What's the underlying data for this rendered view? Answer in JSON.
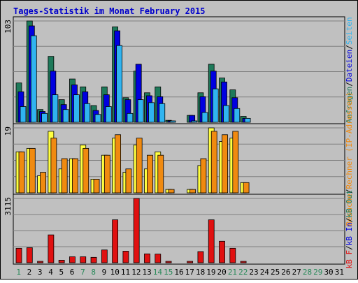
{
  "chart_data": {
    "type": "bar",
    "title": "Tages-Statistik im Monat February 2015",
    "x_tick_labels": [
      "1",
      "2",
      "3",
      "4",
      "5",
      "6",
      "7",
      "8",
      "9",
      "10",
      "11",
      "12",
      "13",
      "14",
      "15",
      "16",
      "17",
      "18",
      "19",
      "20",
      "21",
      "22",
      "23",
      "24",
      "25",
      "26",
      "27",
      "28",
      "29",
      "30",
      "31"
    ],
    "weekend_days": [
      1,
      7,
      8,
      14,
      15,
      21,
      22,
      28,
      29
    ],
    "colors": {
      "title": "#0000cc",
      "background": "#c0c0c0",
      "border": "#000000",
      "gridline": "#808080",
      "weekday_label": "#000000",
      "weekend_label": "#2a8a5a",
      "anfragen": "#1e7a5a",
      "dateien": "#0000e0",
      "seiten": "#30b4f0",
      "rechner": "#ffff40",
      "besuche": "#f08a10",
      "kb_f": "#e01010",
      "kb_in": "#0000e0",
      "kb_out": "#1e7a5a"
    },
    "panels": [
      {
        "id": "requests",
        "max_label": "103",
        "ymax": 103,
        "legend": [
          {
            "text": "Anfragen",
            "color": "#1e7a5a"
          },
          {
            "text": "/",
            "color": "#000000"
          },
          {
            "text": "Dateien",
            "color": "#0000e0"
          },
          {
            "text": "/",
            "color": "#000000"
          },
          {
            "text": "Seiten",
            "color": "#30b4f0"
          }
        ],
        "series": [
          {
            "name": "Anfragen",
            "color": "#1e7a5a",
            "values": [
              40,
              103,
              13,
              67,
              23,
              44,
              36,
              17,
              36,
              97,
              25,
              52,
              30,
              36,
              2,
              0,
              7,
              30,
              59,
              45,
              33,
              6,
              0,
              0,
              0,
              0,
              0,
              0,
              0,
              0,
              0
            ]
          },
          {
            "name": "Dateien",
            "color": "#0000e0",
            "values": [
              31,
              98,
              11,
              52,
              18,
              38,
              31,
              12,
              28,
              93,
              23,
              59,
              27,
              26,
              1,
              0,
              7,
              26,
              52,
              41,
              25,
              4,
              0,
              0,
              0,
              0,
              0,
              0,
              0,
              0,
              0
            ]
          },
          {
            "name": "Seiten",
            "color": "#30b4f0",
            "values": [
              16,
              88,
              9,
              28,
              13,
              28,
              19,
              8,
              16,
              78,
              9,
              23,
              20,
              19,
              1,
              0,
              1,
              10,
              34,
              17,
              14,
              4,
              0,
              0,
              0,
              0,
              0,
              0,
              0,
              0,
              0
            ]
          }
        ]
      },
      {
        "id": "visits",
        "max_label": "19",
        "ymax": 19,
        "legend": [
          {
            "text": "Besuche",
            "color": "#f08a10"
          },
          {
            "text": "/",
            "color": "#000000"
          },
          {
            "text": "Rechner (IP-Adressen)",
            "color": "#f08a10"
          }
        ],
        "series": [
          {
            "name": "Rechner",
            "color": "#ffff40",
            "values": [
              12,
              13,
              5,
              18,
              7,
              10,
              14,
              4,
              11,
              16,
              6,
              14,
              7,
              12,
              1,
              0,
              1,
              8,
              19,
              15,
              16,
              3,
              0,
              0,
              0,
              0,
              0,
              0,
              0,
              0,
              0
            ]
          },
          {
            "name": "Besuche",
            "color": "#f08a10",
            "values": [
              12,
              13,
              6,
              16,
              10,
              10,
              13,
              4,
              11,
              17,
              7,
              16,
              11,
              11,
              1,
              0,
              1,
              10,
              18,
              17,
              18,
              3,
              0,
              0,
              0,
              0,
              0,
              0,
              0,
              0,
              0
            ]
          }
        ]
      },
      {
        "id": "traffic",
        "max_label": "3115",
        "ymax": 3115,
        "legend": [
          {
            "text": "kB F",
            "color": "#e01010"
          },
          {
            "text": "/",
            "color": "#000000"
          },
          {
            "text": "kB In",
            "color": "#0000e0"
          },
          {
            "text": "/",
            "color": "#000000"
          },
          {
            "text": "kB Out",
            "color": "#1e7a5a"
          }
        ],
        "series": [
          {
            "name": "kB F",
            "color": "#e01010",
            "values": [
              700,
              730,
              60,
              1350,
              120,
              290,
              290,
              260,
              620,
              2080,
              560,
              3115,
              430,
              420,
              50,
              0,
              50,
              540,
              2080,
              1040,
              700,
              40,
              0,
              0,
              0,
              0,
              0,
              0,
              0,
              0,
              0
            ]
          }
        ]
      }
    ]
  }
}
